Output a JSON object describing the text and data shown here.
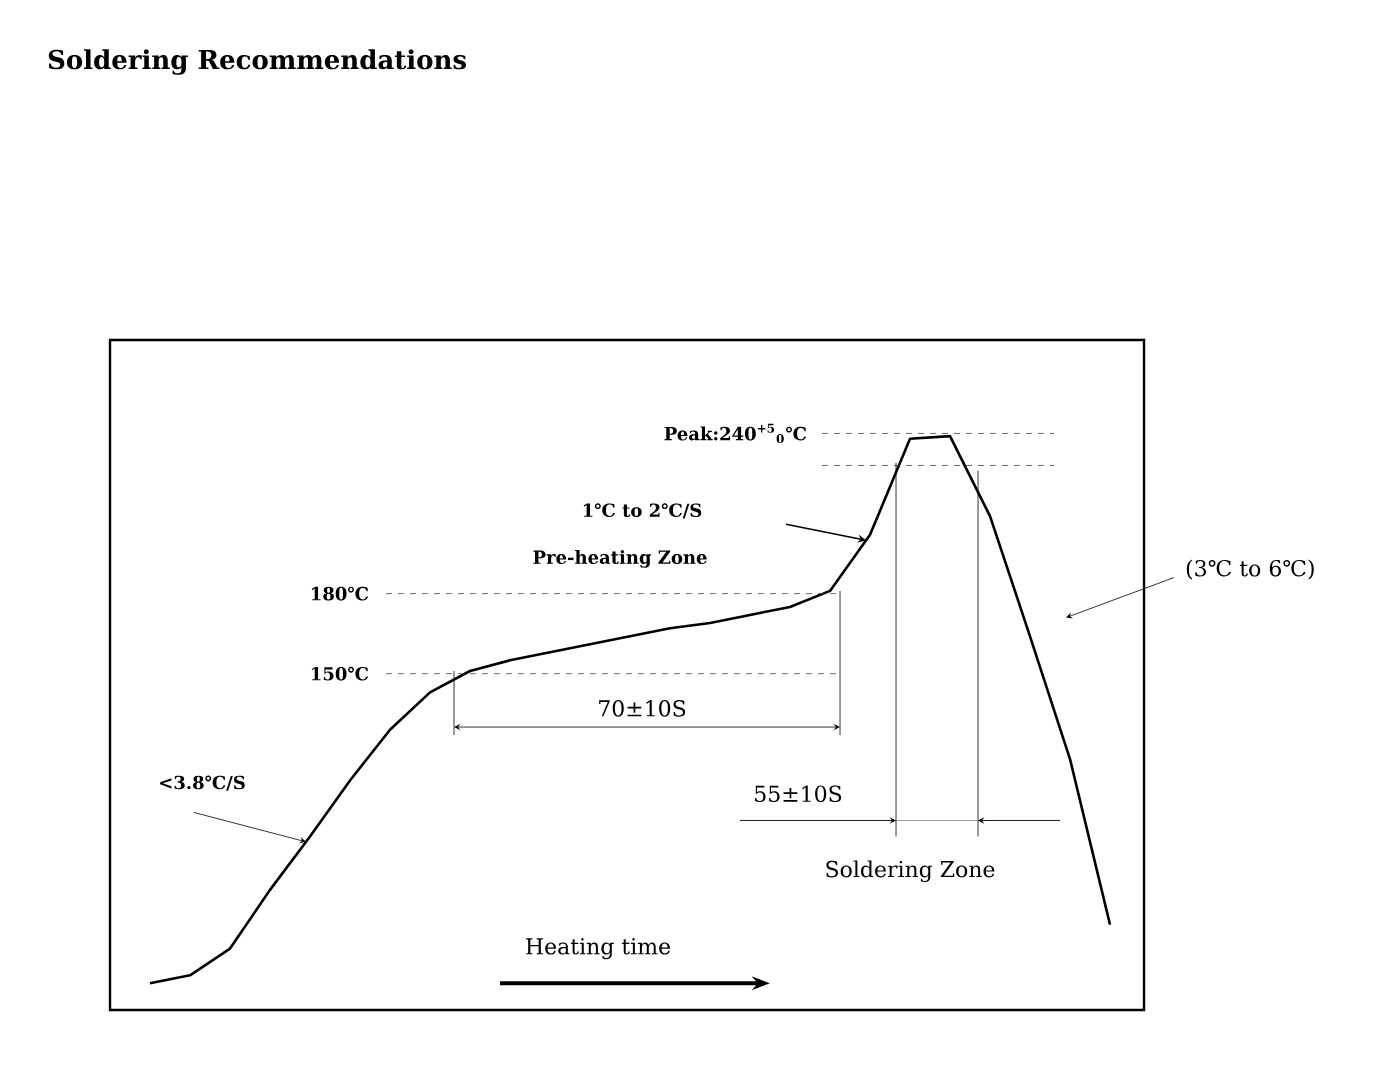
{
  "chart_data": {
    "type": "line",
    "title": "Soldering Recommendations",
    "categories": [
      null,
      null,
      null,
      null,
      null,
      null,
      null,
      null,
      null,
      null,
      null,
      null,
      null,
      null,
      null,
      null,
      null,
      null,
      null,
      null,
      null,
      null,
      null,
      null,
      null
    ],
    "series": [
      {
        "color": "#000000",
        "values": [
          34,
          37,
          47,
          69,
          89,
          110,
          129,
          143,
          151,
          155,
          158,
          161,
          164,
          167,
          169,
          172,
          175,
          181,
          202,
          238,
          239,
          209,
          164,
          118,
          56
        ]
      }
    ],
    "ylim": [
      24,
      275
    ],
    "marker": "none",
    "line_style": "solid",
    "ref_lines": [
      {
        "axis": "y",
        "value": 150,
        "label": "150℃",
        "color": "#444444",
        "line_style": "dashed"
      },
      {
        "axis": "y",
        "value": 180,
        "label": "180℃",
        "color": "#444444",
        "line_style": "dashed"
      },
      {
        "axis": "y",
        "value": 240,
        "label": "Peak:240$^{+5}$$_{0}$℃",
        "color": "#444444",
        "line_style": "dashed"
      },
      {
        "axis": "y",
        "value": 228,
        "color": "#444444",
        "line_style": "dashed"
      }
    ],
    "annotations": [
      "Pre-heating Zone",
      "1℃  to 2℃/S",
      "70±10S",
      "55±10S",
      "Soldering Zone",
      "<3.8℃/S",
      "(3℃  to 6℃)",
      "Heating time"
    ]
  }
}
